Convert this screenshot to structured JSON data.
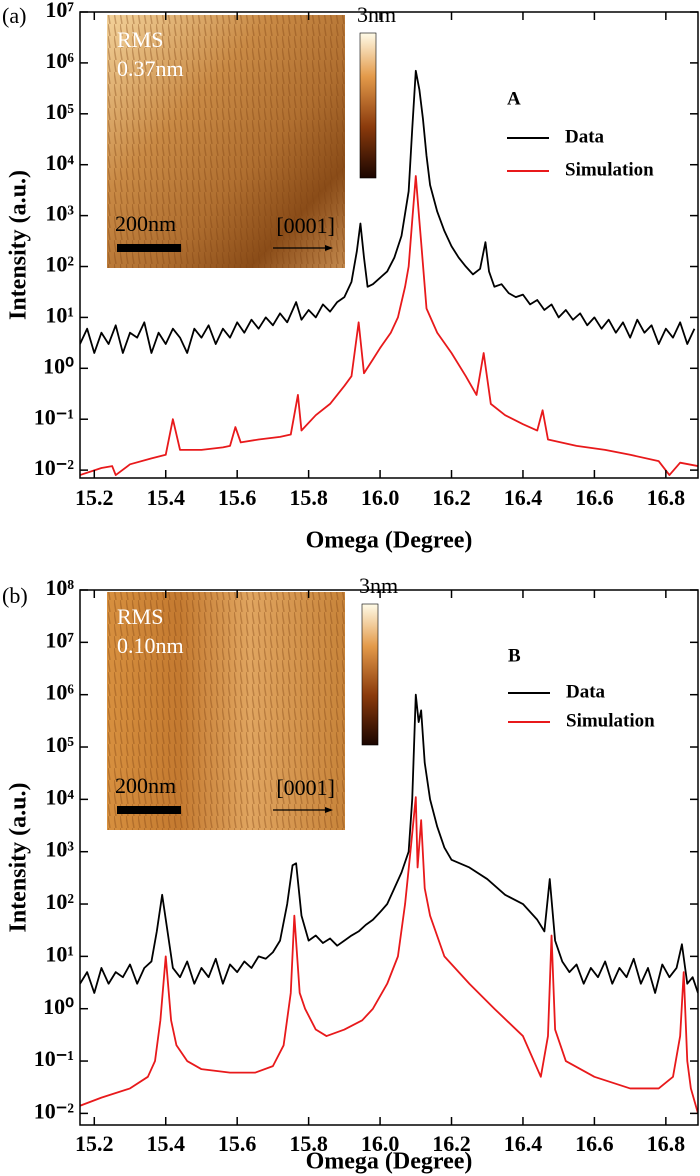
{
  "chart_data": [
    {
      "type": "line",
      "panel_label": "(a)",
      "xlabel": "Omega (Degree)",
      "ylabel": "Intensity (a.u.)",
      "log_y": true,
      "xlim": [
        15.16,
        16.89
      ],
      "ylim": [
        0.007,
        10000000
      ],
      "xticks": [
        15.2,
        15.4,
        15.6,
        15.8,
        {
          "value": 16,
          "label": "16.0"
        },
        16.2,
        16.4,
        16.6,
        16.8
      ],
      "yticks": [
        {
          "value": 0.01,
          "label": "10⁻²"
        },
        {
          "value": 0.1,
          "label": "10⁻¹"
        },
        {
          "value": 1,
          "label": "10⁰"
        },
        {
          "value": 10,
          "label": "10¹"
        },
        {
          "value": 100,
          "label": "10²"
        },
        {
          "value": 1000,
          "label": "10³"
        },
        {
          "value": 10000,
          "label": "10⁴"
        },
        {
          "value": 100000,
          "label": "10⁵"
        },
        {
          "value": 1000000,
          "label": "10⁶"
        },
        {
          "value": 10000000,
          "label": "10⁷"
        }
      ],
      "legend_title": "A",
      "legend_position": "upper right",
      "inset": {
        "rms_label": "RMS",
        "rms_value": "0.37nm",
        "scale_label": "200nm",
        "direction_label": "[0001]",
        "colorbar_label": "3nm"
      },
      "series": [
        {
          "name": "Data",
          "color": "#000000",
          "x": [
            15.16,
            15.18,
            15.2,
            15.22,
            15.24,
            15.26,
            15.28,
            15.3,
            15.32,
            15.34,
            15.36,
            15.38,
            15.4,
            15.42,
            15.44,
            15.46,
            15.48,
            15.5,
            15.52,
            15.54,
            15.56,
            15.58,
            15.6,
            15.62,
            15.64,
            15.66,
            15.68,
            15.7,
            15.72,
            15.74,
            15.765,
            15.78,
            15.8,
            15.82,
            15.84,
            15.86,
            15.88,
            15.9,
            15.92,
            15.935,
            15.945,
            15.955,
            15.965,
            15.98,
            16.0,
            16.02,
            16.04,
            16.06,
            16.08,
            16.09,
            16.1,
            16.11,
            16.12,
            16.13,
            16.14,
            16.16,
            16.18,
            16.2,
            16.22,
            16.24,
            16.26,
            16.28,
            16.295,
            16.305,
            16.32,
            16.34,
            16.36,
            16.38,
            16.4,
            16.42,
            16.44,
            16.46,
            16.48,
            16.5,
            16.52,
            16.54,
            16.56,
            16.58,
            16.6,
            16.62,
            16.64,
            16.66,
            16.68,
            16.7,
            16.72,
            16.74,
            16.76,
            16.78,
            16.8,
            16.82,
            16.84,
            16.86,
            16.88
          ],
          "values": [
            3,
            6,
            2,
            5,
            3,
            7,
            2,
            5,
            4,
            8,
            2,
            5,
            3,
            6,
            4,
            2,
            6,
            4,
            7,
            3,
            6,
            4,
            8,
            5,
            9,
            6,
            10,
            7,
            12,
            8,
            20,
            9,
            14,
            10,
            18,
            13,
            20,
            25,
            50,
            200,
            700,
            150,
            40,
            45,
            60,
            80,
            150,
            400,
            3000,
            50000,
            700000,
            300000,
            80000,
            15000,
            4000,
            1200,
            500,
            250,
            150,
            100,
            70,
            90,
            300,
            80,
            40,
            45,
            30,
            25,
            28,
            18,
            22,
            14,
            18,
            10,
            14,
            9,
            12,
            7,
            10,
            6,
            9,
            5,
            8,
            4,
            9,
            5,
            7,
            3,
            6,
            4,
            8,
            3,
            6
          ]
        },
        {
          "name": "Simulation",
          "color": "#e8191b",
          "x": [
            15.16,
            15.22,
            15.25,
            15.26,
            15.3,
            15.36,
            15.4,
            15.42,
            15.44,
            15.5,
            15.56,
            15.58,
            15.595,
            15.61,
            15.66,
            15.72,
            15.75,
            15.77,
            15.78,
            15.82,
            15.86,
            15.9,
            15.92,
            15.94,
            15.955,
            15.98,
            16.0,
            16.03,
            16.05,
            16.07,
            16.08,
            16.09,
            16.1,
            16.11,
            16.115,
            16.13,
            16.16,
            16.2,
            16.24,
            16.27,
            16.29,
            16.31,
            16.35,
            16.4,
            16.44,
            16.455,
            16.47,
            16.55,
            16.63,
            16.7,
            16.78,
            16.81,
            16.84,
            16.89
          ],
          "values": [
            0.008,
            0.011,
            0.012,
            0.008,
            0.013,
            0.017,
            0.02,
            0.1,
            0.025,
            0.025,
            0.028,
            0.03,
            0.07,
            0.035,
            0.04,
            0.045,
            0.05,
            0.3,
            0.06,
            0.12,
            0.2,
            0.45,
            0.7,
            8,
            0.8,
            1.5,
            2.5,
            5,
            10,
            40,
            100,
            800,
            6000,
            800,
            300,
            15,
            5,
            2,
            0.7,
            0.3,
            2,
            0.2,
            0.12,
            0.08,
            0.06,
            0.15,
            0.04,
            0.03,
            0.025,
            0.02,
            0.015,
            0.008,
            0.014,
            0.012
          ]
        }
      ]
    },
    {
      "type": "line",
      "panel_label": "(b)",
      "xlabel": "Omega (Degree)",
      "ylabel": "Intensity (a.u.)",
      "log_y": true,
      "xlim": [
        15.16,
        16.89
      ],
      "ylim": [
        0.006,
        100000000
      ],
      "xticks": [
        15.2,
        15.4,
        15.6,
        15.8,
        {
          "value": 16,
          "label": "16.0"
        },
        16.2,
        16.4,
        16.6,
        16.8
      ],
      "yticks": [
        {
          "value": 0.01,
          "label": "10⁻²"
        },
        {
          "value": 0.1,
          "label": "10⁻¹"
        },
        {
          "value": 1,
          "label": "10⁰"
        },
        {
          "value": 10,
          "label": "10¹"
        },
        {
          "value": 100,
          "label": "10²"
        },
        {
          "value": 1000,
          "label": "10³"
        },
        {
          "value": 10000,
          "label": "10⁴"
        },
        {
          "value": 100000,
          "label": "10⁵"
        },
        {
          "value": 1000000,
          "label": "10⁶"
        },
        {
          "value": 10000000,
          "label": "10⁷"
        },
        {
          "value": 100000000,
          "label": "10⁸"
        }
      ],
      "legend_title": "B",
      "legend_position": "upper right",
      "inset": {
        "rms_label": "RMS",
        "rms_value": "0.10nm",
        "scale_label": "200nm",
        "direction_label": "[0001]",
        "colorbar_label": "3nm"
      },
      "series": [
        {
          "name": "Data",
          "color": "#000000",
          "x": [
            15.16,
            15.18,
            15.2,
            15.22,
            15.24,
            15.26,
            15.28,
            15.3,
            15.32,
            15.34,
            15.36,
            15.375,
            15.39,
            15.405,
            15.42,
            15.44,
            15.46,
            15.48,
            15.5,
            15.52,
            15.54,
            15.56,
            15.58,
            15.6,
            15.62,
            15.64,
            15.66,
            15.68,
            15.7,
            15.72,
            15.74,
            15.755,
            15.765,
            15.78,
            15.8,
            15.82,
            15.84,
            15.86,
            15.88,
            15.9,
            15.92,
            15.94,
            15.96,
            15.98,
            16.0,
            16.02,
            16.04,
            16.06,
            16.08,
            16.09,
            16.1,
            16.108,
            16.115,
            16.125,
            16.14,
            16.16,
            16.18,
            16.2,
            16.25,
            16.3,
            16.35,
            16.4,
            16.44,
            16.46,
            16.475,
            16.49,
            16.51,
            16.53,
            16.55,
            16.57,
            16.59,
            16.61,
            16.63,
            16.65,
            16.67,
            16.69,
            16.71,
            16.73,
            16.75,
            16.77,
            16.79,
            16.81,
            16.83,
            16.845,
            16.86,
            16.875,
            16.89
          ],
          "values": [
            3,
            5,
            2,
            6,
            3,
            5,
            4,
            7,
            3,
            6,
            8,
            30,
            150,
            30,
            6,
            4,
            8,
            3,
            6,
            4,
            9,
            3,
            7,
            5,
            8,
            6,
            10,
            9,
            12,
            20,
            100,
            550,
            600,
            60,
            20,
            25,
            18,
            22,
            16,
            20,
            25,
            30,
            40,
            50,
            70,
            100,
            200,
            400,
            1000,
            10000,
            1000000,
            300000,
            500000,
            50000,
            10000,
            3000,
            1200,
            700,
            500,
            300,
            150,
            100,
            50,
            30,
            300,
            20,
            8,
            5,
            7,
            3,
            6,
            4,
            8,
            3,
            6,
            4,
            9,
            3,
            6,
            2,
            7,
            4,
            6,
            17,
            3,
            4,
            2
          ]
        },
        {
          "name": "Simulation",
          "color": "#e8191b",
          "x": [
            15.16,
            15.22,
            15.3,
            15.35,
            15.37,
            15.385,
            15.4,
            15.415,
            15.43,
            15.46,
            15.5,
            15.58,
            15.65,
            15.7,
            15.73,
            15.75,
            15.76,
            15.775,
            15.79,
            15.82,
            15.85,
            15.9,
            15.95,
            15.98,
            16.02,
            16.05,
            16.07,
            16.085,
            16.1,
            16.105,
            16.115,
            16.125,
            16.14,
            16.18,
            16.25,
            16.32,
            16.4,
            16.45,
            16.47,
            16.48,
            16.49,
            16.52,
            16.6,
            16.7,
            16.78,
            16.82,
            16.84,
            16.85,
            16.86,
            16.87,
            16.89
          ],
          "values": [
            0.014,
            0.02,
            0.03,
            0.05,
            0.1,
            0.6,
            10,
            0.6,
            0.2,
            0.1,
            0.07,
            0.06,
            0.06,
            0.08,
            0.2,
            2,
            60,
            2,
            1,
            0.4,
            0.3,
            0.4,
            0.6,
            1,
            3,
            10,
            100,
            1000,
            11000,
            500,
            4000,
            200,
            60,
            10,
            3,
            1,
            0.3,
            0.05,
            0.3,
            25,
            0.4,
            0.1,
            0.05,
            0.03,
            0.03,
            0.05,
            0.3,
            5,
            0.1,
            0.03,
            0.01
          ]
        }
      ]
    }
  ]
}
